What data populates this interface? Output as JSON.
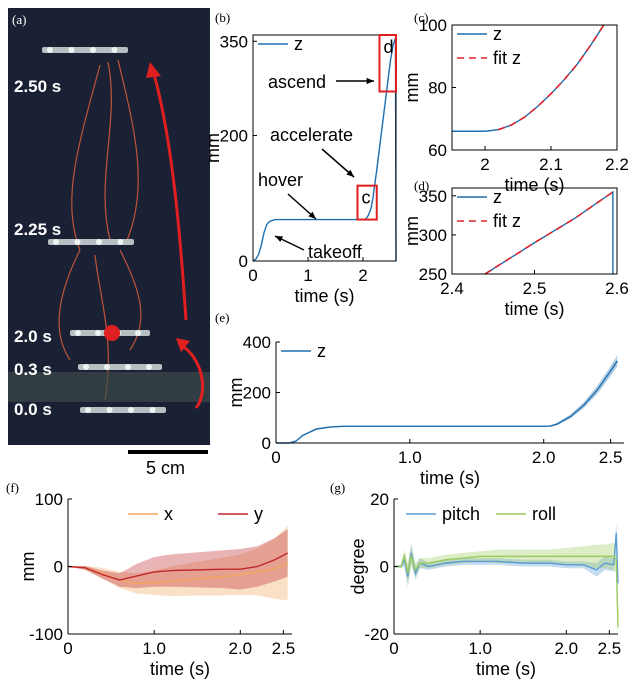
{
  "panel_labels": {
    "a": "(a)",
    "b": "(b)",
    "c": "(c)",
    "d": "(d)",
    "e": "(e)",
    "f": "(f)",
    "g": "(g)"
  },
  "photo": {
    "time_labels": [
      "2.50 s",
      "2.25 s",
      "2.0 s",
      "0.3 s",
      "0.0 s"
    ],
    "scalebar": "5 cm",
    "colors": {
      "background": "#1b2134",
      "arrow": "#e02020",
      "streak": "#e8603a",
      "robot": "#c8d0d0"
    }
  },
  "colors": {
    "z": "#1f6fb0",
    "fit": "#e0232e",
    "x": "#f2a65e",
    "y": "#c0272d",
    "pitch": "#5b9bd5",
    "roll": "#9bcb5f"
  },
  "chart_data": [
    {
      "id": "b",
      "type": "line",
      "xlabel": "time (s)",
      "ylabel": "mm",
      "xlim": [
        0,
        2.6
      ],
      "ylim": [
        0,
        360
      ],
      "xticks": [
        0,
        1,
        2
      ],
      "xtick_labels": [
        "0",
        "1",
        "2"
      ],
      "yticks": [
        0,
        200,
        350
      ],
      "ytick_labels": [
        "0",
        "200",
        "350"
      ],
      "legend": {
        "position": "top-left",
        "entries": [
          "z"
        ]
      },
      "series": [
        {
          "name": "z",
          "x": [
            0,
            0.05,
            0.1,
            0.15,
            0.2,
            0.25,
            0.3,
            0.4,
            0.5,
            0.7,
            1.0,
            1.3,
            1.6,
            1.9,
            2.0,
            2.05,
            2.1,
            2.15,
            2.18,
            2.25,
            2.3,
            2.35,
            2.4,
            2.45,
            2.5,
            2.55,
            2.59,
            2.6
          ],
          "y": [
            0,
            3,
            10,
            25,
            45,
            58,
            63,
            66,
            66,
            66,
            66,
            66,
            66,
            66,
            66,
            67,
            73,
            85,
            100,
            145,
            180,
            215,
            250,
            285,
            320,
            345,
            355,
            0
          ]
        }
      ],
      "annotations": [
        "ascend",
        "accelerate",
        "hover",
        "takeoff"
      ],
      "boxes": [
        {
          "label": "c",
          "x": [
            1.9,
            2.25
          ],
          "y": [
            66,
            120
          ]
        },
        {
          "label": "d",
          "x": [
            2.3,
            2.6
          ],
          "y": [
            270,
            360
          ]
        }
      ]
    },
    {
      "id": "c",
      "type": "line",
      "xlabel": "time (s)",
      "ylabel": "mm",
      "xlim": [
        1.95,
        2.2
      ],
      "ylim": [
        60,
        100
      ],
      "xticks": [
        2,
        2.1,
        2.2
      ],
      "xtick_labels": [
        "2",
        "2.1",
        "2.2"
      ],
      "yticks": [
        60,
        80,
        100
      ],
      "ytick_labels": [
        "60",
        "80",
        "100"
      ],
      "legend": {
        "position": "top-left",
        "entries": [
          "z",
          "fit z"
        ]
      },
      "series": [
        {
          "name": "z",
          "x": [
            1.95,
            2.0,
            2.02,
            2.04,
            2.06,
            2.08,
            2.1,
            2.12,
            2.14,
            2.16,
            2.18
          ],
          "y": [
            66,
            66,
            66.5,
            68,
            70.5,
            74,
            78,
            82.5,
            87.5,
            93.5,
            100
          ]
        },
        {
          "name": "fit z",
          "x": [
            2.02,
            2.04,
            2.06,
            2.08,
            2.1,
            2.12,
            2.14,
            2.16,
            2.18
          ],
          "y": [
            66.5,
            68,
            70.5,
            74,
            78,
            82.5,
            87.5,
            93.5,
            100
          ]
        }
      ]
    },
    {
      "id": "d",
      "type": "line",
      "xlabel": "time (s)",
      "ylabel": "mm",
      "xlim": [
        2.4,
        2.6
      ],
      "ylim": [
        250,
        360
      ],
      "xticks": [
        2.4,
        2.5,
        2.6
      ],
      "xtick_labels": [
        "2.4",
        "2.5",
        "2.6"
      ],
      "yticks": [
        250,
        300,
        350
      ],
      "ytick_labels": [
        "250",
        "300",
        "350"
      ],
      "legend": {
        "position": "top-left",
        "entries": [
          "z",
          "fit z"
        ]
      },
      "series": [
        {
          "name": "z",
          "x": [
            2.44,
            2.5,
            2.55,
            2.595,
            2.595
          ],
          "y": [
            250,
            290,
            322,
            355,
            250
          ]
        },
        {
          "name": "fit z",
          "x": [
            2.44,
            2.5,
            2.55,
            2.595
          ],
          "y": [
            250,
            290,
            322,
            355
          ]
        }
      ]
    },
    {
      "id": "e",
      "type": "area",
      "xlabel": "time (s)",
      "ylabel": "mm",
      "xlim": [
        0,
        2.6
      ],
      "ylim": [
        0,
        400
      ],
      "xticks": [
        0,
        1.0,
        2.0,
        2.5
      ],
      "xtick_labels": [
        "0",
        "1.0",
        "2.0",
        "2.5"
      ],
      "yticks": [
        0,
        200,
        400
      ],
      "ytick_labels": [
        "0",
        "200",
        "400"
      ],
      "legend": {
        "position": "top-left",
        "entries": [
          "z"
        ]
      },
      "series": [
        {
          "name": "z",
          "x": [
            0,
            0.1,
            0.15,
            0.2,
            0.3,
            0.4,
            0.5,
            1.0,
            1.5,
            2.0,
            2.05,
            2.1,
            2.2,
            2.3,
            2.4,
            2.5,
            2.55
          ],
          "y": [
            0,
            0,
            8,
            30,
            55,
            63,
            66,
            66,
            66,
            66,
            67,
            75,
            105,
            150,
            210,
            285,
            325
          ],
          "band": [
            0,
            0,
            2,
            4,
            4,
            3,
            2,
            2,
            2,
            2,
            3,
            5,
            8,
            12,
            16,
            20,
            22
          ]
        }
      ]
    },
    {
      "id": "f",
      "type": "area",
      "xlabel": "time (s)",
      "ylabel": "mm",
      "xlim": [
        0,
        2.6
      ],
      "ylim": [
        -100,
        100
      ],
      "xticks": [
        0,
        1.0,
        2.0,
        2.5
      ],
      "xtick_labels": [
        "0",
        "1.0",
        "2.0",
        "2.5"
      ],
      "yticks": [
        -100,
        0,
        100
      ],
      "ytick_labels": [
        "-100",
        "0",
        "100"
      ],
      "legend": {
        "position": "top-right",
        "entries": [
          "x",
          "y"
        ]
      },
      "series": [
        {
          "name": "x",
          "x": [
            0,
            0.2,
            0.4,
            0.6,
            0.8,
            1.0,
            1.2,
            1.5,
            1.8,
            2.0,
            2.2,
            2.4,
            2.55
          ],
          "y": [
            0,
            -2,
            -10,
            -20,
            -25,
            -24,
            -22,
            -18,
            -15,
            -12,
            -8,
            -3,
            5
          ],
          "band": [
            0,
            3,
            8,
            12,
            15,
            18,
            22,
            25,
            28,
            30,
            35,
            45,
            55
          ]
        },
        {
          "name": "y",
          "x": [
            0,
            0.2,
            0.4,
            0.6,
            0.8,
            1.0,
            1.2,
            1.5,
            1.8,
            2.0,
            2.2,
            2.4,
            2.55
          ],
          "y": [
            0,
            -2,
            -12,
            -20,
            -14,
            -8,
            -6,
            -5,
            -4,
            -4,
            0,
            10,
            20
          ],
          "band": [
            0,
            3,
            6,
            10,
            18,
            22,
            24,
            26,
            28,
            30,
            30,
            32,
            35
          ]
        }
      ]
    },
    {
      "id": "g",
      "type": "area",
      "xlabel": "time (s)",
      "ylabel": "degree",
      "xlim": [
        0,
        2.6
      ],
      "ylim": [
        -20,
        20
      ],
      "xticks": [
        0,
        1.0,
        2.0,
        2.5
      ],
      "xtick_labels": [
        "0",
        "1.0",
        "2.0",
        "2.5"
      ],
      "yticks": [
        -20,
        0,
        20
      ],
      "ytick_labels": [
        "-20",
        "0",
        "20"
      ],
      "legend": {
        "position": "top",
        "entries": [
          "pitch",
          "roll"
        ]
      },
      "series": [
        {
          "name": "pitch",
          "x": [
            0,
            0.08,
            0.12,
            0.16,
            0.2,
            0.25,
            0.3,
            0.4,
            0.5,
            0.6,
            0.8,
            1.0,
            1.2,
            1.5,
            1.8,
            2.0,
            2.2,
            2.35,
            2.45,
            2.55,
            2.58,
            2.6
          ],
          "y": [
            0,
            0,
            2,
            -3,
            4,
            -2,
            1,
            0,
            0.5,
            1,
            1.5,
            1.5,
            1.5,
            1,
            1,
            0.5,
            0.5,
            -1,
            1,
            0.5,
            10,
            -5
          ],
          "band": [
            0,
            0.5,
            2,
            3,
            3,
            2,
            1.5,
            1,
            1,
            1,
            1,
            1,
            1,
            1,
            1,
            1,
            1,
            2,
            2,
            2,
            3,
            3
          ]
        },
        {
          "name": "roll",
          "x": [
            0,
            0.08,
            0.12,
            0.16,
            0.2,
            0.25,
            0.3,
            0.4,
            0.5,
            0.6,
            0.8,
            1.0,
            1.2,
            1.5,
            1.8,
            2.0,
            2.2,
            2.35,
            2.45,
            2.55,
            2.58,
            2.6
          ],
          "y": [
            0,
            0,
            3,
            -2,
            3,
            -1,
            1,
            1,
            1.5,
            2,
            2.5,
            3,
            3,
            3,
            3,
            3,
            3,
            3,
            3,
            3,
            2,
            -18
          ],
          "band": [
            0,
            0.5,
            2,
            3,
            3,
            2,
            1.5,
            1.5,
            1.5,
            1.5,
            1.5,
            1.5,
            2,
            2,
            2,
            2.5,
            3,
            3.5,
            3.5,
            4,
            4,
            4
          ]
        }
      ]
    }
  ]
}
